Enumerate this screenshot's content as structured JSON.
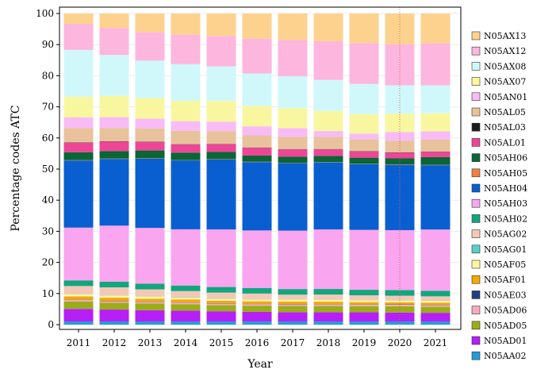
{
  "chart_data": {
    "type": "bar",
    "stacked": true,
    "title": "",
    "xlabel": "Year",
    "ylabel": "Percentage codes ATC",
    "ylim": [
      0,
      100
    ],
    "yticks": [
      0,
      10,
      20,
      30,
      40,
      50,
      60,
      70,
      80,
      90,
      100
    ],
    "grid": true,
    "legend_position": "right",
    "annotations": [
      {
        "type": "vline",
        "x": "2020",
        "style": "dotted",
        "color": "#cc6666"
      }
    ],
    "categories": [
      "2011",
      "2012",
      "2013",
      "2014",
      "2015",
      "2016",
      "2017",
      "2018",
      "2019",
      "2020",
      "2021"
    ],
    "series": [
      {
        "name": "N05AA02",
        "color": "#1f9fd6",
        "values": [
          1.0,
          1.0,
          1.0,
          1.0,
          1.0,
          1.0,
          1.0,
          1.0,
          1.0,
          1.0,
          1.0
        ]
      },
      {
        "name": "N05AD01",
        "color": "#b61ff5",
        "values": [
          4.0,
          3.8,
          3.6,
          3.5,
          3.3,
          3.1,
          3.0,
          3.0,
          3.0,
          2.9,
          2.8
        ]
      },
      {
        "name": "N05AD05",
        "color": "#9aad18",
        "values": [
          2.4,
          2.2,
          2.2,
          2.1,
          2.0,
          2.0,
          2.0,
          2.0,
          2.0,
          2.0,
          2.0
        ]
      },
      {
        "name": "N05AD06",
        "color": "#f8a9bf",
        "values": [
          0.5,
          0.5,
          0.5,
          0.5,
          0.5,
          0.5,
          0.5,
          0.5,
          0.5,
          0.5,
          0.5
        ]
      },
      {
        "name": "N05AE03",
        "color": "#203f82",
        "values": [
          0.1,
          0.1,
          0.1,
          0.1,
          0.1,
          0.1,
          0.1,
          0.1,
          0.1,
          0.1,
          0.1
        ]
      },
      {
        "name": "N05AF01",
        "color": "#f6a805",
        "values": [
          1.0,
          1.0,
          0.9,
          0.9,
          0.8,
          0.8,
          0.8,
          0.8,
          0.7,
          0.7,
          0.7
        ]
      },
      {
        "name": "N05AF05",
        "color": "#fdf5a4",
        "values": [
          0.7,
          0.7,
          0.7,
          0.6,
          0.6,
          0.6,
          0.6,
          0.6,
          0.6,
          0.6,
          0.6
        ]
      },
      {
        "name": "N05AG01",
        "color": "#56d1c8",
        "values": [
          0.1,
          0.1,
          0.1,
          0.1,
          0.1,
          0.1,
          0.1,
          0.1,
          0.1,
          0.1,
          0.1
        ]
      },
      {
        "name": "N05AG02",
        "color": "#f4c7b6",
        "values": [
          2.5,
          2.5,
          2.2,
          2.0,
          1.9,
          1.8,
          1.5,
          1.6,
          1.5,
          1.4,
          1.3
        ]
      },
      {
        "name": "N05AH02",
        "color": "#12a67e",
        "values": [
          1.8,
          1.8,
          1.8,
          1.8,
          1.8,
          1.8,
          1.8,
          1.8,
          1.8,
          1.8,
          1.8
        ]
      },
      {
        "name": "N05AH03",
        "color": "#f9a5ef",
        "values": [
          16.8,
          17.9,
          17.9,
          18.1,
          18.5,
          18.5,
          18.7,
          19.2,
          19.4,
          19.3,
          19.7
        ]
      },
      {
        "name": "N05AH04",
        "color": "#0a5fd0",
        "values": [
          21.4,
          21.3,
          22.2,
          22.2,
          22.5,
          22.0,
          21.6,
          21.6,
          21.3,
          21.0,
          20.7
        ]
      },
      {
        "name": "N05AH05",
        "color": "#f07f41",
        "values": [
          0.1,
          0.1,
          0.1,
          0.1,
          0.1,
          0.1,
          0.1,
          0.1,
          0.1,
          0.1,
          0.1
        ]
      },
      {
        "name": "N05AH06",
        "color": "#0b6535",
        "values": [
          2.5,
          2.4,
          2.5,
          2.4,
          2.3,
          2.0,
          2.0,
          2.0,
          2.0,
          2.0,
          2.5
        ]
      },
      {
        "name": "N05AL01",
        "color": "#ed4697",
        "values": [
          3.0,
          3.0,
          2.7,
          2.6,
          2.5,
          2.5,
          2.3,
          2.1,
          2.0,
          1.8,
          1.7
        ]
      },
      {
        "name": "N05AL03",
        "color": "#1c1c1c",
        "values": [
          0.1,
          0.1,
          0.1,
          0.1,
          0.1,
          0.1,
          0.1,
          0.1,
          0.1,
          0.1,
          0.1
        ]
      },
      {
        "name": "N05AL05",
        "color": "#e8c29c",
        "values": [
          4.6,
          4.3,
          4.3,
          4.3,
          4.1,
          3.9,
          3.9,
          3.9,
          3.9,
          3.8,
          3.8
        ]
      },
      {
        "name": "N05AN01",
        "color": "#f8bbf5",
        "values": [
          3.4,
          3.4,
          3.1,
          3.1,
          3.0,
          2.9,
          2.8,
          1.9,
          1.8,
          2.8,
          2.7
        ]
      },
      {
        "name": "N05AX07",
        "color": "#f8f7a0",
        "values": [
          6.6,
          6.8,
          6.6,
          6.6,
          6.7,
          6.6,
          6.4,
          6.5,
          6.3,
          5.9,
          5.8
        ]
      },
      {
        "name": "N05AX08",
        "color": "#d0f8fb",
        "values": [
          14.9,
          13.1,
          12.0,
          11.8,
          11.1,
          10.4,
          10.2,
          10.0,
          9.8,
          9.1,
          9.0
        ]
      },
      {
        "name": "N05AX12",
        "color": "#fdb6de",
        "values": [
          8.3,
          8.6,
          9.1,
          9.5,
          9.8,
          11.2,
          11.6,
          12.5,
          13.2,
          13.2,
          13.5
        ]
      },
      {
        "name": "N05AX13",
        "color": "#fdd28e",
        "values": [
          3.3,
          4.6,
          6.0,
          6.8,
          7.2,
          8.1,
          8.5,
          8.9,
          9.6,
          9.9,
          9.6
        ]
      }
    ]
  }
}
